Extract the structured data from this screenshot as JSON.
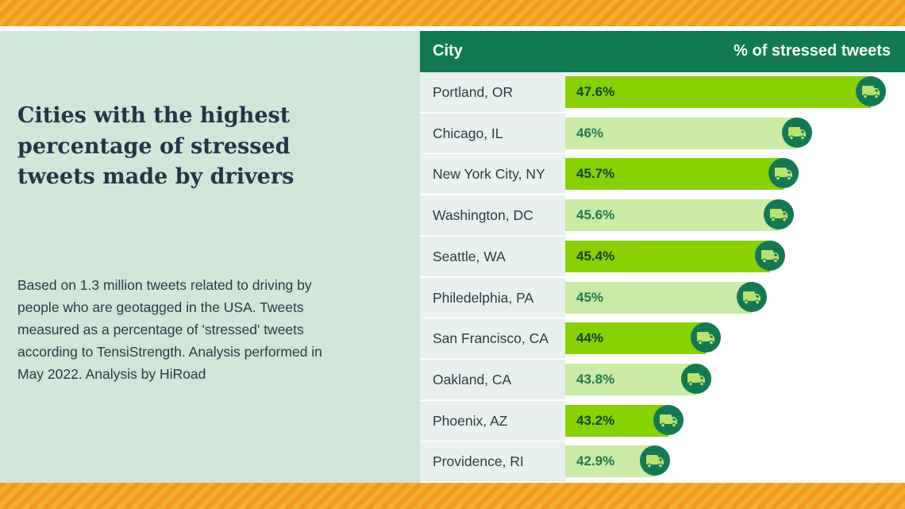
{
  "title": "Cities with the highest percentage of stressed tweets made by drivers",
  "description": "Based on 1.3 million tweets related to driving by people who are geotagged in the USA. Tweets measured as a percentage of 'stressed' tweets according to TensiStrength. Analysis performed in May 2022. Analysis by HiRoad",
  "table": {
    "col_city": "City",
    "col_pct": "% of stressed tweets"
  },
  "colors": {
    "header": "#117a52",
    "bar_dark": "#88d100",
    "bar_light": "#c9eba3",
    "icon_circle": "#117a52",
    "icon_truck": "#b9e36a"
  },
  "chart_data": {
    "type": "bar",
    "orientation": "horizontal",
    "title": "Cities with the highest percentage of stressed tweets made by drivers",
    "xlabel": "% of stressed tweets",
    "ylabel": "City",
    "categories": [
      "Portland, OR",
      "Chicago, IL",
      "New York City, NY",
      "Washington, DC",
      "Seattle, WA",
      "Philedelphia, PA",
      "San Francisco, CA",
      "Oakland, CA",
      "Phoenix, AZ",
      "Providence, RI"
    ],
    "values": [
      47.6,
      46,
      45.7,
      45.6,
      45.4,
      45,
      44,
      43.8,
      43.2,
      42.9
    ],
    "value_labels": [
      "47.6%",
      "46%",
      "45.7%",
      "45.6%",
      "45.4%",
      "45%",
      "44%",
      "43.8%",
      "43.2%",
      "42.9%"
    ],
    "icon": "truck-icon"
  }
}
